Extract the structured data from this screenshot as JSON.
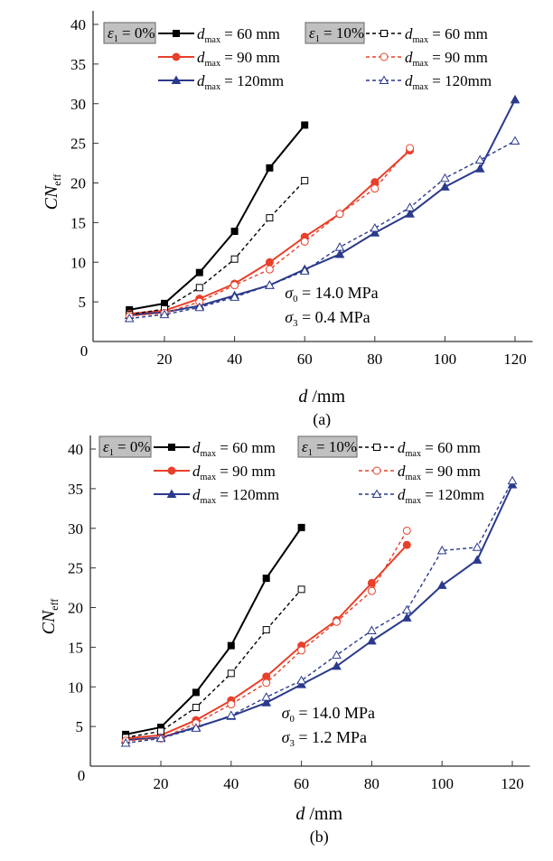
{
  "chart_data": [
    {
      "type": "line",
      "panel_label": "(a)",
      "xlabel": "d /mm",
      "ylabel": "CN",
      "ylabel_sub": "eff",
      "xlim": [
        0,
        125
      ],
      "ylim": [
        0,
        40
      ],
      "xticks": [
        20,
        40,
        60,
        80,
        100,
        120
      ],
      "yticks": [
        5,
        10,
        15,
        20,
        25,
        30,
        35,
        40
      ],
      "origin_label": "0",
      "annotations": [
        {
          "sym": "σ",
          "sub": "0",
          "text": " = 14.0 MPa"
        },
        {
          "sym": "σ",
          "sub": "3",
          "text": " = 0.4   MPa"
        }
      ],
      "groups": [
        {
          "label": "ε",
          "label_sub": "1",
          "label_rest": " = 0%"
        },
        {
          "label": "ε",
          "label_sub": "1",
          "label_rest": " = 10%"
        }
      ],
      "series": [
        {
          "group": 0,
          "name": "d max = 60 mm",
          "lbl": "= 60  mm",
          "color": "#000000",
          "marker": "square",
          "dashed": false,
          "x": [
            10,
            20,
            30,
            40,
            50,
            60
          ],
          "y": [
            4.0,
            4.8,
            8.7,
            13.9,
            21.9,
            27.3
          ]
        },
        {
          "group": 0,
          "name": "d max = 90 mm",
          "lbl": "= 90  mm",
          "color": "#e8402a",
          "marker": "circle",
          "dashed": false,
          "x": [
            10,
            20,
            30,
            40,
            50,
            60,
            70,
            80,
            90
          ],
          "y": [
            3.5,
            3.9,
            5.4,
            7.3,
            10.0,
            13.2,
            16.1,
            20.1,
            24.1
          ]
        },
        {
          "group": 0,
          "name": "d max = 120mm",
          "lbl": "= 120mm",
          "color": "#2a3a8c",
          "marker": "triangle",
          "dashed": false,
          "x": [
            10,
            20,
            30,
            40,
            50,
            60,
            70,
            80,
            90,
            100,
            110,
            120
          ],
          "y": [
            3.3,
            3.7,
            4.5,
            5.8,
            7.1,
            9.1,
            11.0,
            13.7,
            16.1,
            19.5,
            21.8,
            30.5
          ]
        },
        {
          "group": 1,
          "name": "d max = 60 mm",
          "lbl": "= 60  mm",
          "color": "#000000",
          "marker": "square",
          "dashed": true,
          "x": [
            10,
            20,
            30,
            40,
            50,
            60
          ],
          "y": [
            3.4,
            4.1,
            6.8,
            10.4,
            15.6,
            20.3
          ]
        },
        {
          "group": 1,
          "name": "d max = 90 mm",
          "lbl": "= 90  mm",
          "color": "#e8402a",
          "marker": "circle",
          "dashed": true,
          "x": [
            10,
            20,
            30,
            40,
            50,
            60,
            70,
            80,
            90
          ],
          "y": [
            3.2,
            3.6,
            5.0,
            7.1,
            9.1,
            12.6,
            16.1,
            19.3,
            24.4
          ]
        },
        {
          "group": 1,
          "name": "d max = 120mm",
          "lbl": "= 120mm",
          "color": "#2a3a8c",
          "marker": "triangle",
          "dashed": true,
          "x": [
            10,
            20,
            30,
            40,
            50,
            60,
            70,
            80,
            90,
            100,
            110,
            120
          ],
          "y": [
            2.9,
            3.4,
            4.3,
            5.6,
            7.1,
            8.9,
            11.9,
            14.3,
            16.9,
            20.6,
            22.9,
            25.3
          ]
        }
      ]
    },
    {
      "type": "line",
      "panel_label": "(b)",
      "xlabel": "d /mm",
      "ylabel": "CN",
      "ylabel_sub": "eff",
      "xlim": [
        0,
        125
      ],
      "ylim": [
        0,
        40
      ],
      "xticks": [
        20,
        40,
        60,
        80,
        100,
        120
      ],
      "yticks": [
        5,
        10,
        15,
        20,
        25,
        30,
        35,
        40
      ],
      "origin_label": "0",
      "annotations": [
        {
          "sym": "σ",
          "sub": "0",
          "text": " = 14.0 MPa"
        },
        {
          "sym": "σ",
          "sub": "3",
          "text": " = 1.2   MPa"
        }
      ],
      "groups": [
        {
          "label": "ε",
          "label_sub": "1",
          "label_rest": " = 0%"
        },
        {
          "label": "ε",
          "label_sub": "1",
          "label_rest": " = 10%"
        }
      ],
      "series": [
        {
          "group": 0,
          "name": "d max = 60 mm",
          "lbl": "= 60  mm",
          "color": "#000000",
          "marker": "square",
          "dashed": false,
          "x": [
            10,
            20,
            30,
            40,
            50,
            60
          ],
          "y": [
            4.0,
            4.9,
            9.3,
            15.2,
            23.7,
            30.1
          ]
        },
        {
          "group": 0,
          "name": "d max = 90 mm",
          "lbl": "= 90  mm",
          "color": "#e8402a",
          "marker": "circle",
          "dashed": false,
          "x": [
            10,
            20,
            30,
            40,
            50,
            60,
            70,
            80,
            90
          ],
          "y": [
            3.5,
            3.9,
            5.8,
            8.3,
            11.3,
            15.2,
            18.4,
            23.1,
            27.9
          ]
        },
        {
          "group": 0,
          "name": "d max = 120mm",
          "lbl": "= 120mm",
          "color": "#2a3a8c",
          "marker": "triangle",
          "dashed": false,
          "x": [
            10,
            20,
            30,
            40,
            50,
            60,
            70,
            80,
            90,
            100,
            110,
            120
          ],
          "y": [
            3.3,
            3.6,
            4.9,
            6.3,
            8.0,
            10.3,
            12.6,
            15.8,
            18.7,
            22.8,
            26.0,
            35.5
          ]
        },
        {
          "group": 1,
          "name": "d max = 60 mm",
          "lbl": "= 60  mm",
          "color": "#000000",
          "marker": "square",
          "dashed": true,
          "x": [
            10,
            20,
            30,
            40,
            50,
            60
          ],
          "y": [
            3.6,
            4.4,
            7.4,
            11.7,
            17.2,
            22.3
          ]
        },
        {
          "group": 1,
          "name": "d max = 90 mm",
          "lbl": "= 90  mm",
          "color": "#e8402a",
          "marker": "circle",
          "dashed": true,
          "x": [
            10,
            20,
            30,
            40,
            50,
            60,
            70,
            80,
            90
          ],
          "y": [
            3.2,
            3.5,
            5.4,
            7.8,
            10.5,
            14.6,
            18.2,
            22.1,
            29.7
          ]
        },
        {
          "group": 1,
          "name": "d max = 120mm",
          "lbl": "= 120mm",
          "color": "#2a3a8c",
          "marker": "triangle",
          "dashed": true,
          "x": [
            10,
            20,
            30,
            40,
            50,
            60,
            70,
            80,
            90,
            100,
            110,
            120
          ],
          "y": [
            2.9,
            3.5,
            4.8,
            6.4,
            8.7,
            10.8,
            14.0,
            17.1,
            19.7,
            27.2,
            27.6,
            36.0
          ]
        }
      ]
    }
  ],
  "legend_sub": "max",
  "legend_d": "d"
}
